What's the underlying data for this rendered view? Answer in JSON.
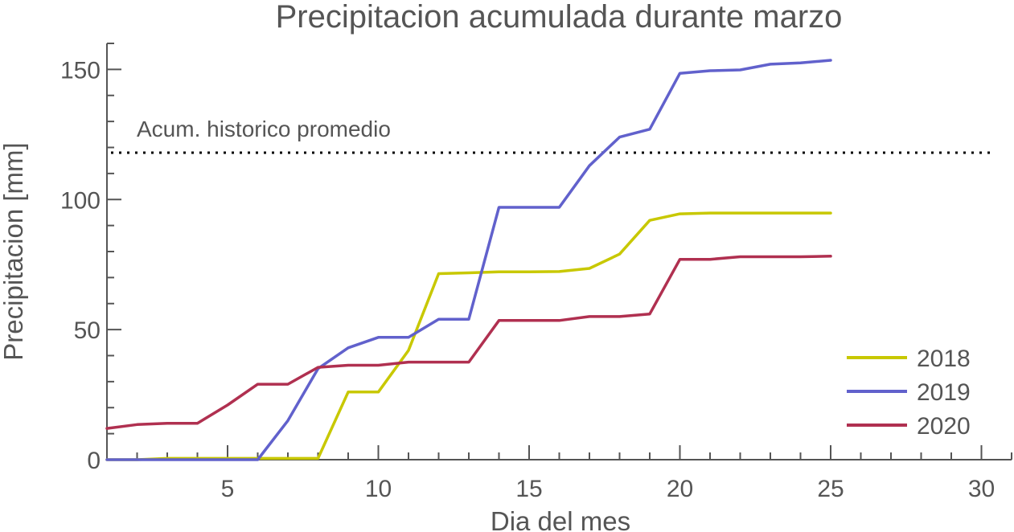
{
  "chart_data": {
    "type": "line",
    "title": "Precipitacion acumulada durante marzo",
    "xlabel": "Dia del mes",
    "ylabel": "Precipitacion [mm]",
    "xlim": [
      1,
      31
    ],
    "ylim": [
      0,
      160
    ],
    "xticks": [
      5,
      10,
      15,
      20,
      25,
      30
    ],
    "yticks": [
      0,
      50,
      100,
      150
    ],
    "x_minor_step": 1,
    "y_minor_step": 10,
    "legend_position": "bottom-right",
    "reference_line": {
      "label": "Acum. historico promedio",
      "y": 118,
      "style": "dotted",
      "color": "#000000"
    },
    "series": [
      {
        "name": "2018",
        "color": "#c8c800",
        "x": [
          1,
          2,
          3,
          4,
          5,
          6,
          7,
          8,
          9,
          10,
          11,
          12,
          13,
          14,
          15,
          16,
          17,
          18,
          19,
          20,
          21,
          22,
          23,
          24,
          25
        ],
        "y": [
          0,
          0,
          0.5,
          0.5,
          0.5,
          0.5,
          0.5,
          0.5,
          26,
          26,
          42,
          71.5,
          71.8,
          72.2,
          72.2,
          72.3,
          73.5,
          79,
          92,
          94.5,
          94.8,
          94.8,
          94.8,
          94.8,
          94.8
        ]
      },
      {
        "name": "2019",
        "color": "#6161cc",
        "x": [
          1,
          2,
          3,
          4,
          5,
          6,
          7,
          8,
          9,
          10,
          11,
          12,
          13,
          14,
          15,
          16,
          17,
          18,
          19,
          20,
          21,
          22,
          23,
          24,
          25
        ],
        "y": [
          0,
          0,
          0,
          0,
          0,
          0,
          15,
          35,
          43,
          47,
          47,
          54,
          54,
          97,
          97,
          97,
          113,
          124,
          127,
          148.5,
          149.5,
          149.8,
          152,
          152.5,
          153.5
        ]
      },
      {
        "name": "2020",
        "color": "#b03050",
        "x": [
          1,
          2,
          3,
          4,
          5,
          6,
          7,
          8,
          9,
          10,
          11,
          12,
          13,
          14,
          15,
          16,
          17,
          18,
          19,
          20,
          21,
          22,
          23,
          24,
          25
        ],
        "y": [
          12,
          13.5,
          14,
          14,
          21,
          29,
          29,
          35.5,
          36.3,
          36.3,
          37.5,
          37.5,
          37.5,
          53.5,
          53.5,
          53.5,
          55,
          55,
          56,
          77,
          77,
          78,
          78,
          78,
          78.2
        ]
      }
    ]
  }
}
